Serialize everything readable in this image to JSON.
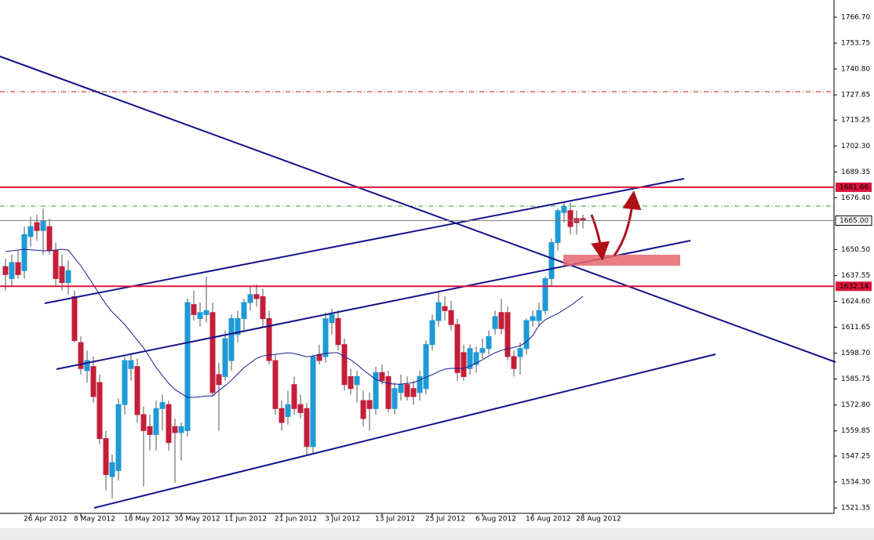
{
  "chart_data": {
    "type": "candlestick",
    "categories": [
      null,
      null,
      null,
      null,
      "26 Apr 2012",
      null,
      null,
      null,
      null,
      null,
      null,
      null,
      "8 May 2012",
      null,
      null,
      null,
      null,
      null,
      null,
      null,
      "18 May 2012",
      null,
      null,
      null,
      null,
      null,
      null,
      null,
      "30 May 2012",
      null,
      null,
      null,
      null,
      null,
      null,
      null,
      "11 Jun 2012",
      null,
      null,
      null,
      null,
      null,
      null,
      null,
      "21 Jun 2012",
      null,
      null,
      null,
      null,
      null,
      null,
      null,
      "3 Jul 2012",
      null,
      null,
      null,
      null,
      null,
      null,
      null,
      "13 Jul 2012",
      null,
      null,
      null,
      null,
      null,
      null,
      null,
      "25 Jul 2012",
      null,
      null,
      null,
      null,
      null,
      null,
      null,
      "6 Aug 2012",
      null,
      null,
      null,
      null,
      null,
      null,
      null,
      "16 Aug 2012",
      null,
      null,
      null,
      null,
      null,
      null,
      null,
      "28 Aug 2012"
    ],
    "open": [
      1642,
      1636,
      1644,
      1640,
      1657,
      1664,
      1660,
      1662,
      1650,
      1642,
      1634,
      1627,
      1604,
      1590,
      1592,
      1584,
      1556,
      1537,
      1540,
      1573,
      1591,
      1592,
      1568,
      1562,
      1558,
      1571,
      1573,
      1562,
      1559,
      1560,
      1623,
      1616,
      1618,
      1619,
      1588,
      1587,
      1595,
      1608,
      1616,
      1624,
      1628,
      1627,
      1616,
      1595,
      1571,
      1567,
      1583,
      1573,
      1571,
      1552,
      1598,
      1597,
      1614,
      1616,
      1603,
      1587,
      1583,
      1575,
      1575,
      1571,
      1589,
      1587,
      1571,
      1579,
      1583,
      1581,
      1579,
      1581,
      1603,
      1615,
      1622,
      1620,
      1613,
      1599,
      1591,
      1593,
      1599,
      1601,
      1611,
      1619,
      1619,
      1597,
      1597,
      1601,
      1615,
      1615,
      1620,
      1636,
      1654,
      1669,
      1670,
      1666,
      1666
    ],
    "high": [
      1646,
      1648,
      1650,
      1662,
      1667,
      1668,
      1671,
      1666,
      1654,
      1648,
      1645,
      1630,
      1607,
      1600,
      1597,
      1588,
      1560,
      1548,
      1576,
      1597,
      1598,
      1596,
      1572,
      1568,
      1575,
      1578,
      1575,
      1566,
      1564,
      1626,
      1630,
      1624,
      1637,
      1624,
      1594,
      1610,
      1618,
      1620,
      1626,
      1632,
      1633,
      1631,
      1620,
      1598,
      1575,
      1580,
      1587,
      1578,
      1574,
      1598,
      1603,
      1619,
      1621,
      1620,
      1606,
      1591,
      1590,
      1580,
      1579,
      1592,
      1593,
      1590,
      1584,
      1588,
      1587,
      1585,
      1590,
      1605,
      1618,
      1630,
      1627,
      1625,
      1616,
      1603,
      1603,
      1602,
      1606,
      1610,
      1620,
      1626,
      1622,
      1600,
      1604,
      1616,
      1620,
      1624,
      1637,
      1656,
      1671,
      1674,
      1674,
      1670,
      1668
    ],
    "low": [
      1630,
      1632,
      1636,
      1636,
      1652,
      1655,
      1648,
      1648,
      1632,
      1630,
      1628,
      1604,
      1588,
      1584,
      1574,
      1553,
      1530,
      1526,
      1535,
      1568,
      1585,
      1564,
      1532,
      1550,
      1550,
      1560,
      1550,
      1534,
      1545,
      1557,
      1615,
      1612,
      1614,
      1577,
      1560,
      1585,
      1590,
      1604,
      1610,
      1620,
      1622,
      1612,
      1593,
      1568,
      1560,
      1563,
      1568,
      1566,
      1548,
      1548,
      1593,
      1594,
      1608,
      1600,
      1580,
      1578,
      1574,
      1562,
      1560,
      1568,
      1583,
      1569,
      1568,
      1575,
      1575,
      1573,
      1575,
      1578,
      1600,
      1612,
      1615,
      1610,
      1585,
      1585,
      1588,
      1589,
      1596,
      1598,
      1608,
      1608,
      1595,
      1587,
      1588,
      1598,
      1612,
      1612,
      1618,
      1632,
      1650,
      1664,
      1658,
      1658,
      1661
    ],
    "close": [
      1638,
      1644,
      1638,
      1658,
      1662,
      1660,
      1665,
      1650,
      1636,
      1634,
      1640,
      1605,
      1591,
      1595,
      1577,
      1556,
      1538,
      1544,
      1573,
      1595,
      1595,
      1568,
      1560,
      1558,
      1571,
      1574,
      1554,
      1559,
      1562,
      1624,
      1618,
      1619,
      1620,
      1579,
      1583,
      1606,
      1616,
      1616,
      1624,
      1628,
      1626,
      1616,
      1595,
      1571,
      1564,
      1573,
      1571,
      1569,
      1552,
      1597,
      1595,
      1616,
      1618,
      1603,
      1583,
      1581,
      1587,
      1566,
      1571,
      1589,
      1585,
      1571,
      1581,
      1583,
      1577,
      1577,
      1587,
      1603,
      1615,
      1624,
      1620,
      1613,
      1589,
      1587,
      1601,
      1599,
      1601,
      1607,
      1617,
      1611,
      1597,
      1591,
      1601,
      1615,
      1617,
      1620,
      1636,
      1654,
      1670,
      1672,
      1662,
      1664,
      1665
    ],
    "up_color": "#1e9ad6",
    "down_color": "#c41e3a",
    "ma": {
      "color": "#1a1a8c",
      "values": [
        1649.5,
        1649.9,
        1650.3,
        1650.6,
        1650.4,
        1650.2,
        1649.9,
        1649.9,
        1650.3,
        1650.6,
        1650.3,
        1646.3,
        1642.4,
        1637.7,
        1633.0,
        1627.9,
        1623.2,
        1619.3,
        1616.2,
        1613.0,
        1609.1,
        1605.2,
        1601.3,
        1596.5,
        1591.5,
        1587.5,
        1583.6,
        1580.5,
        1578.5,
        1576.6,
        1576.6,
        1576.9,
        1577.3,
        1577.3,
        1580.1,
        1582.4,
        1585.2,
        1588.3,
        1591.5,
        1593.8,
        1596.1,
        1597.3,
        1597.7,
        1598.1,
        1598.5,
        1598.9,
        1598.5,
        1597.7,
        1596.9,
        1597.3,
        1598.1,
        1598.5,
        1598.9,
        1598.9,
        1596.9,
        1595.4,
        1593.0,
        1590.3,
        1587.9,
        1585.6,
        1584.4,
        1583.6,
        1583.2,
        1583.2,
        1583.6,
        1584.0,
        1585.2,
        1586.7,
        1587.9,
        1589.5,
        1590.7,
        1591.1,
        1591.1,
        1591.1,
        1592.2,
        1593.8,
        1595.4,
        1597.3,
        1598.9,
        1600.1,
        1600.9,
        1601.6,
        1602.4,
        1604.4,
        1607.5,
        1612.6,
        1615.4,
        1617.0,
        1618.5,
        1620.5,
        1622.4,
        1624.8,
        1627.1
      ]
    },
    "ylim": [
      1518.6,
      1775.3
    ],
    "yticks": [
      {
        "value": 1766.7,
        "label": "1766.70"
      },
      1753.75,
      {
        "value": 1740.8,
        "label": "1740.80"
      },
      1727.85,
      1715.25,
      {
        "value": 1702.3,
        "label": "1702.30"
      },
      1689.35,
      {
        "value": 1676.4,
        "label": "1676.40"
      },
      {
        "value": 1650.5,
        "label": "1650.50"
      },
      1637.55,
      {
        "value": 1624.6,
        "label": "1624.60"
      },
      1611.65,
      {
        "value": 1598.7,
        "label": "1598.70"
      },
      1585.75,
      {
        "value": 1572.8,
        "label": "1572.80"
      },
      1559.85,
      1547.25,
      {
        "value": 1534.3,
        "label": "1534.30"
      },
      1521.35
    ],
    "levels": [
      {
        "value": 1681.66,
        "color": "#dc143c"
      },
      {
        "value": 1632.14,
        "color": "#dc143c"
      }
    ],
    "last_price": {
      "value": 1665,
      "label": "1665.00"
    }
  }
}
